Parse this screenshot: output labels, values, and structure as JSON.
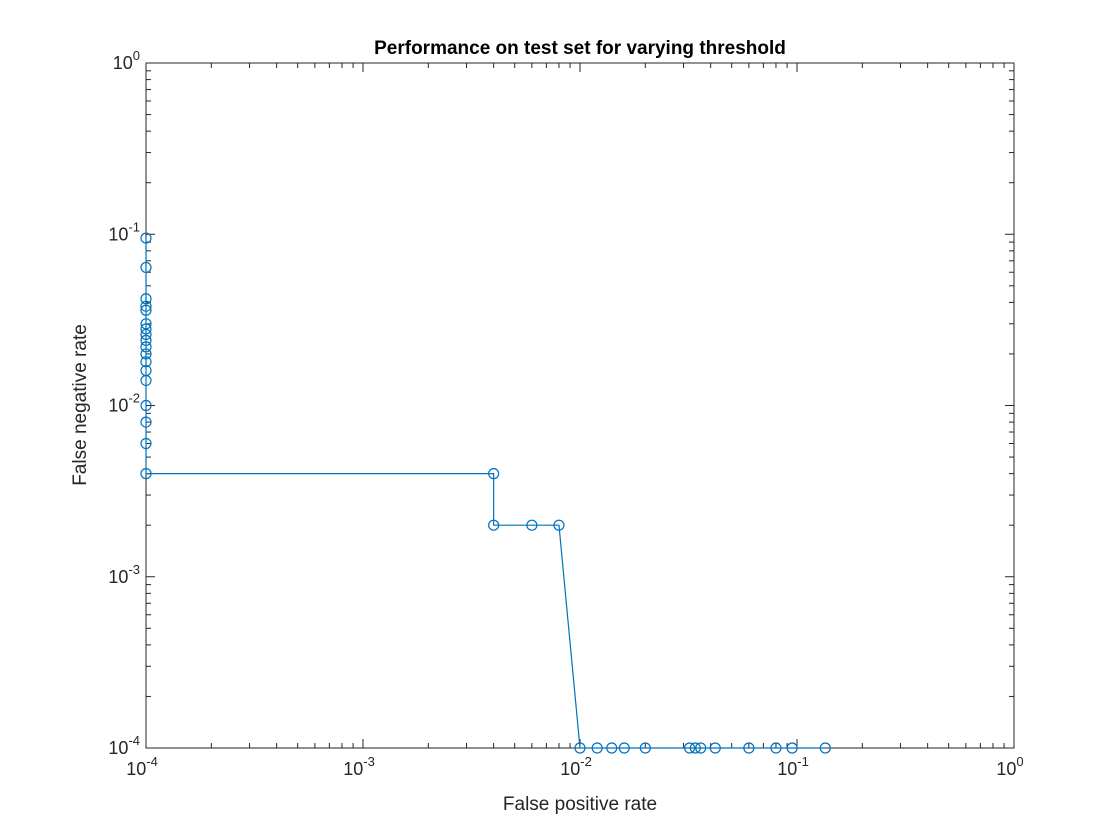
{
  "chart_data": {
    "type": "line",
    "title": "Performance on test set for varying threshold",
    "xlabel": "False positive rate",
    "ylabel": "False negative rate",
    "xscale": "log",
    "yscale": "log",
    "xlim": [
      0.0001,
      1
    ],
    "ylim": [
      0.0001,
      1
    ],
    "grid": false,
    "x_ticks": [
      {
        "base": "10",
        "exp": "-4",
        "value": 0.0001
      },
      {
        "base": "10",
        "exp": "-3",
        "value": 0.001
      },
      {
        "base": "10",
        "exp": "-2",
        "value": 0.01
      },
      {
        "base": "10",
        "exp": "-1",
        "value": 0.1
      },
      {
        "base": "10",
        "exp": "0",
        "value": 1
      }
    ],
    "y_ticks": [
      {
        "base": "10",
        "exp": "-4",
        "value": 0.0001
      },
      {
        "base": "10",
        "exp": "-3",
        "value": 0.001
      },
      {
        "base": "10",
        "exp": "-2",
        "value": 0.01
      },
      {
        "base": "10",
        "exp": "-1",
        "value": 0.1
      },
      {
        "base": "10",
        "exp": "0",
        "value": 1
      }
    ],
    "series": [
      {
        "color": "#0072bd",
        "marker": "circle",
        "points": [
          [
            0.0001,
            0.095
          ],
          [
            0.0001,
            0.064
          ],
          [
            0.0001,
            0.042
          ],
          [
            0.0001,
            0.038
          ],
          [
            0.0001,
            0.036
          ],
          [
            0.0001,
            0.03
          ],
          [
            0.0001,
            0.028
          ],
          [
            0.0001,
            0.026
          ],
          [
            0.0001,
            0.024
          ],
          [
            0.0001,
            0.022
          ],
          [
            0.0001,
            0.02
          ],
          [
            0.0001,
            0.018
          ],
          [
            0.0001,
            0.016
          ],
          [
            0.0001,
            0.014
          ],
          [
            0.0001,
            0.01
          ],
          [
            0.0001,
            0.008
          ],
          [
            0.0001,
            0.006
          ],
          [
            0.0001,
            0.004
          ],
          [
            0.004,
            0.004
          ],
          [
            0.004,
            0.002
          ],
          [
            0.006,
            0.002
          ],
          [
            0.008,
            0.002
          ],
          [
            0.01,
            0.0001
          ],
          [
            0.012,
            0.0001
          ],
          [
            0.014,
            0.0001
          ],
          [
            0.016,
            0.0001
          ],
          [
            0.02,
            0.0001
          ],
          [
            0.032,
            0.0001
          ],
          [
            0.034,
            0.0001
          ],
          [
            0.036,
            0.0001
          ],
          [
            0.042,
            0.0001
          ],
          [
            0.06,
            0.0001
          ],
          [
            0.08,
            0.0001
          ],
          [
            0.095,
            0.0001
          ],
          [
            0.135,
            0.0001
          ]
        ]
      }
    ]
  }
}
